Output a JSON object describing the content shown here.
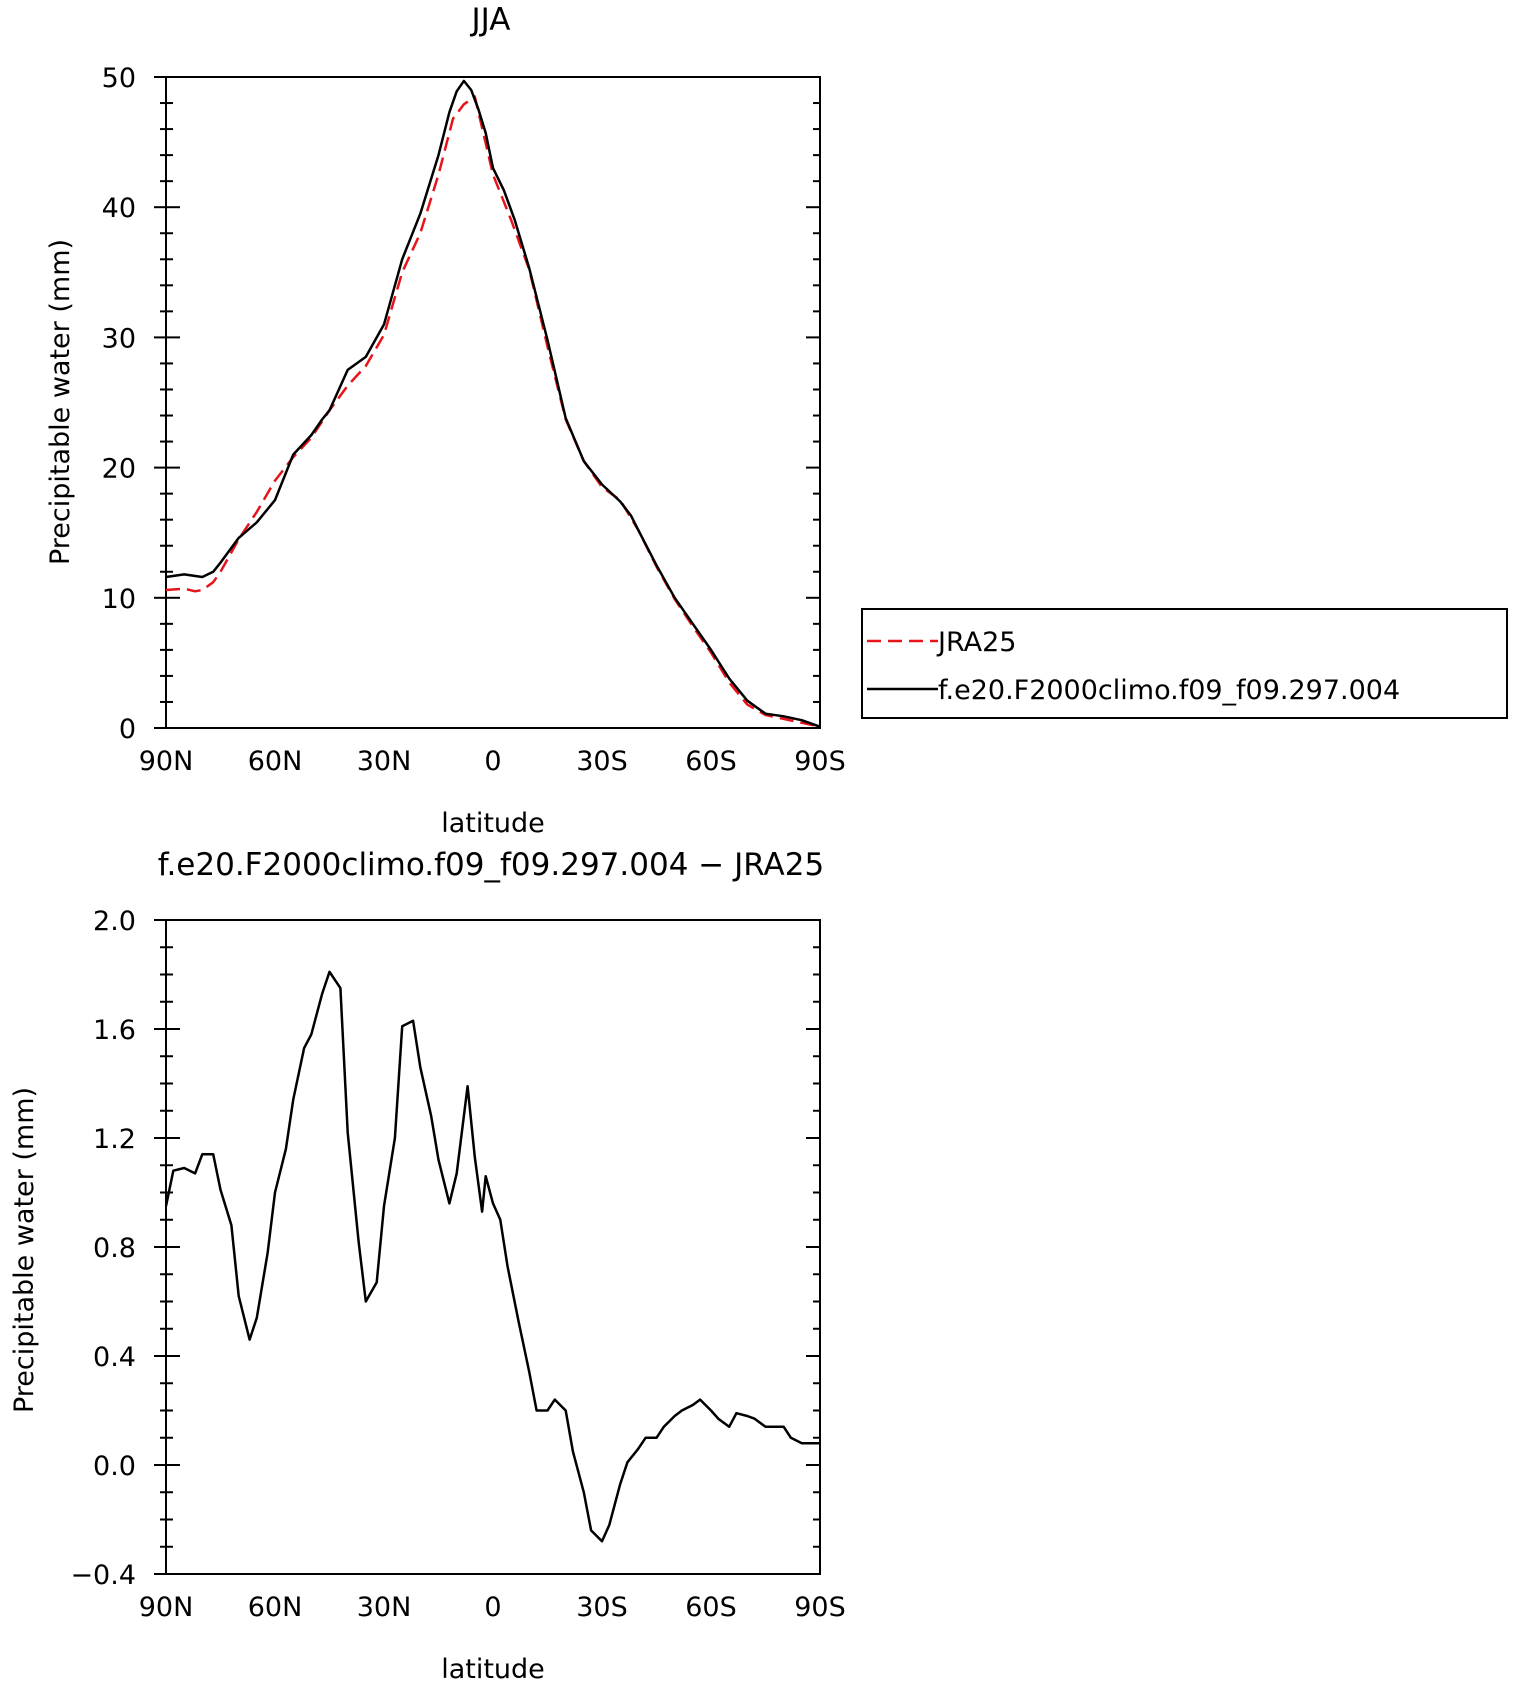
{
  "chart_data": [
    {
      "type": "line",
      "title": "JJA",
      "xlabel": "latitude",
      "ylabel": "Precipitable water (mm)",
      "xlim": [
        90,
        -90
      ],
      "ylim": [
        0,
        50
      ],
      "xticks": [
        90,
        60,
        30,
        0,
        -30,
        -60,
        -90
      ],
      "xtick_labels": [
        "90N",
        "60N",
        "30N",
        "0",
        "30S",
        "60S",
        "90S"
      ],
      "yticks": [
        0,
        10,
        20,
        30,
        40,
        50
      ],
      "ytick_labels": [
        "0",
        "10",
        "20",
        "30",
        "40",
        "50"
      ],
      "grid": false,
      "legend_position": "right",
      "series": [
        {
          "name": "JRA25",
          "color": "#e8141b",
          "dash": "dashed",
          "x": [
            90,
            85,
            82,
            80,
            77,
            75,
            70,
            65,
            60,
            55,
            50,
            45,
            40,
            35,
            30,
            25,
            20,
            15,
            11,
            8,
            5,
            0,
            -5,
            -10,
            -15,
            -20,
            -25,
            -30,
            -35,
            -40,
            -45,
            -50,
            -55,
            -60,
            -65,
            -70,
            -75,
            -80,
            -85,
            -90
          ],
          "y": [
            10.6,
            10.7,
            10.5,
            10.6,
            11.2,
            12.0,
            14.5,
            16.6,
            19.0,
            20.8,
            22.3,
            24.4,
            26.3,
            27.8,
            30.2,
            35.0,
            38.0,
            42.5,
            46.8,
            47.9,
            48.5,
            42.5,
            39.0,
            35.2,
            29.3,
            23.7,
            20.5,
            18.5,
            17.5,
            15.2,
            12.4,
            9.9,
            7.8,
            5.8,
            3.5,
            1.8,
            1.0,
            0.7,
            0.4,
            0.1
          ]
        },
        {
          "name": "f.e20.F2000climo.f09_f09.297.004",
          "color": "#000000",
          "dash": "solid",
          "x": [
            90,
            85,
            80,
            77,
            75,
            70,
            65,
            60,
            55,
            50,
            47,
            45,
            40,
            35,
            30,
            25,
            20,
            15,
            12,
            10,
            8,
            6,
            4,
            2,
            0,
            -3,
            -6,
            -10,
            -15,
            -20,
            -25,
            -30,
            -35,
            -38,
            -40,
            -45,
            -50,
            -55,
            -60,
            -65,
            -70,
            -75,
            -80,
            -85,
            -90
          ],
          "y": [
            11.6,
            11.8,
            11.6,
            12.0,
            12.7,
            14.6,
            15.8,
            17.5,
            21.0,
            22.5,
            23.7,
            24.4,
            27.5,
            28.5,
            31.0,
            36.0,
            39.5,
            44.0,
            47.3,
            48.9,
            49.7,
            49.0,
            47.5,
            45.7,
            43.0,
            41.3,
            39.0,
            35.3,
            29.8,
            23.8,
            20.5,
            18.7,
            17.4,
            16.3,
            15.2,
            12.5,
            10.0,
            8.0,
            6.0,
            3.8,
            2.1,
            1.1,
            0.9,
            0.6,
            0.1
          ]
        }
      ]
    },
    {
      "type": "line",
      "title": "f.e20.F2000climo.f09_f09.297.004 − JRA25",
      "xlabel": "latitude",
      "ylabel": "Precipitable water (mm)",
      "xlim": [
        90,
        -90
      ],
      "ylim": [
        -0.4,
        2.0
      ],
      "xticks": [
        90,
        60,
        30,
        0,
        -30,
        -60,
        -90
      ],
      "xtick_labels": [
        "90N",
        "60N",
        "30N",
        "0",
        "30S",
        "60S",
        "90S"
      ],
      "yticks": [
        -0.4,
        0.0,
        0.4,
        0.8,
        1.2,
        1.6,
        2.0
      ],
      "ytick_labels": [
        "−0.4",
        "0.0",
        "0.4",
        "0.8",
        "1.2",
        "1.6",
        "2.0"
      ],
      "grid": false,
      "series": [
        {
          "color": "#000000",
          "dash": "solid",
          "x": [
            90,
            88,
            85,
            82,
            80,
            77,
            75,
            72,
            70,
            67,
            65,
            62,
            60,
            57,
            55,
            52,
            50,
            47,
            45,
            42,
            40,
            37,
            35,
            32,
            30,
            27,
            25,
            22,
            20,
            17,
            15,
            12,
            10,
            7,
            5,
            3,
            2,
            0,
            -2,
            -4,
            -7,
            -10,
            -12,
            -15,
            -17,
            -20,
            -22,
            -25,
            -27,
            -30,
            -32,
            -35,
            -37,
            -40,
            -42,
            -45,
            -47,
            -50,
            -52,
            -55,
            -57,
            -60,
            -62,
            -65,
            -67,
            -70,
            -72,
            -75,
            -77,
            -80,
            -82,
            -85,
            -87,
            -90
          ],
          "y": [
            0.95,
            1.08,
            1.09,
            1.07,
            1.14,
            1.14,
            1.01,
            0.88,
            0.62,
            0.46,
            0.54,
            0.78,
            1.0,
            1.16,
            1.34,
            1.53,
            1.58,
            1.73,
            1.81,
            1.75,
            1.22,
            0.82,
            0.6,
            0.67,
            0.95,
            1.2,
            1.61,
            1.63,
            1.46,
            1.28,
            1.12,
            0.96,
            1.07,
            1.39,
            1.13,
            0.93,
            1.06,
            0.96,
            0.9,
            0.73,
            0.53,
            0.34,
            0.2,
            0.2,
            0.24,
            0.2,
            0.05,
            -0.1,
            -0.24,
            -0.28,
            -0.22,
            -0.07,
            0.01,
            0.06,
            0.1,
            0.1,
            0.14,
            0.18,
            0.2,
            0.22,
            0.24,
            0.2,
            0.17,
            0.14,
            0.19,
            0.18,
            0.17,
            0.14,
            0.14,
            0.14,
            0.1,
            0.08,
            0.08,
            0.08
          ]
        }
      ]
    }
  ]
}
